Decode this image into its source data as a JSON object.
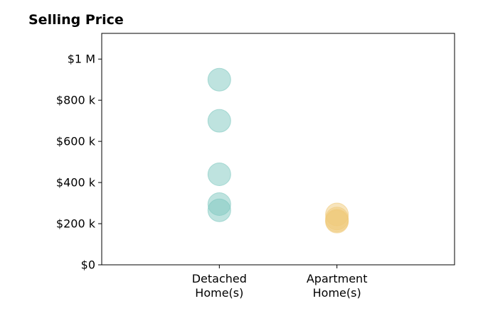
{
  "chart_data": {
    "type": "scatter",
    "title": "Selling Price",
    "xlabel": "",
    "ylabel": "",
    "categories": [
      "Detached\nHome(s)",
      "Apartment\nHome(s)"
    ],
    "y_ticks": [
      {
        "value": 0,
        "label": "$0"
      },
      {
        "value": 200000,
        "label": "$200 k"
      },
      {
        "value": 400000,
        "label": "$400 k"
      },
      {
        "value": 600000,
        "label": "$600 k"
      },
      {
        "value": 800000,
        "label": "$800 k"
      },
      {
        "value": 1000000,
        "label": "$1 M"
      }
    ],
    "ylim": [
      0,
      1125000
    ],
    "x_range": [
      -1,
      2
    ],
    "grid": false,
    "series": [
      {
        "category": "Detached\nHome(s)",
        "color": "#7ec8c0",
        "values": [
          900000,
          700000,
          440000,
          295000,
          265000
        ]
      },
      {
        "category": "Apartment\nHome(s)",
        "color": "#f0c97a",
        "values": [
          245000,
          225000,
          215000,
          210000
        ]
      }
    ]
  }
}
